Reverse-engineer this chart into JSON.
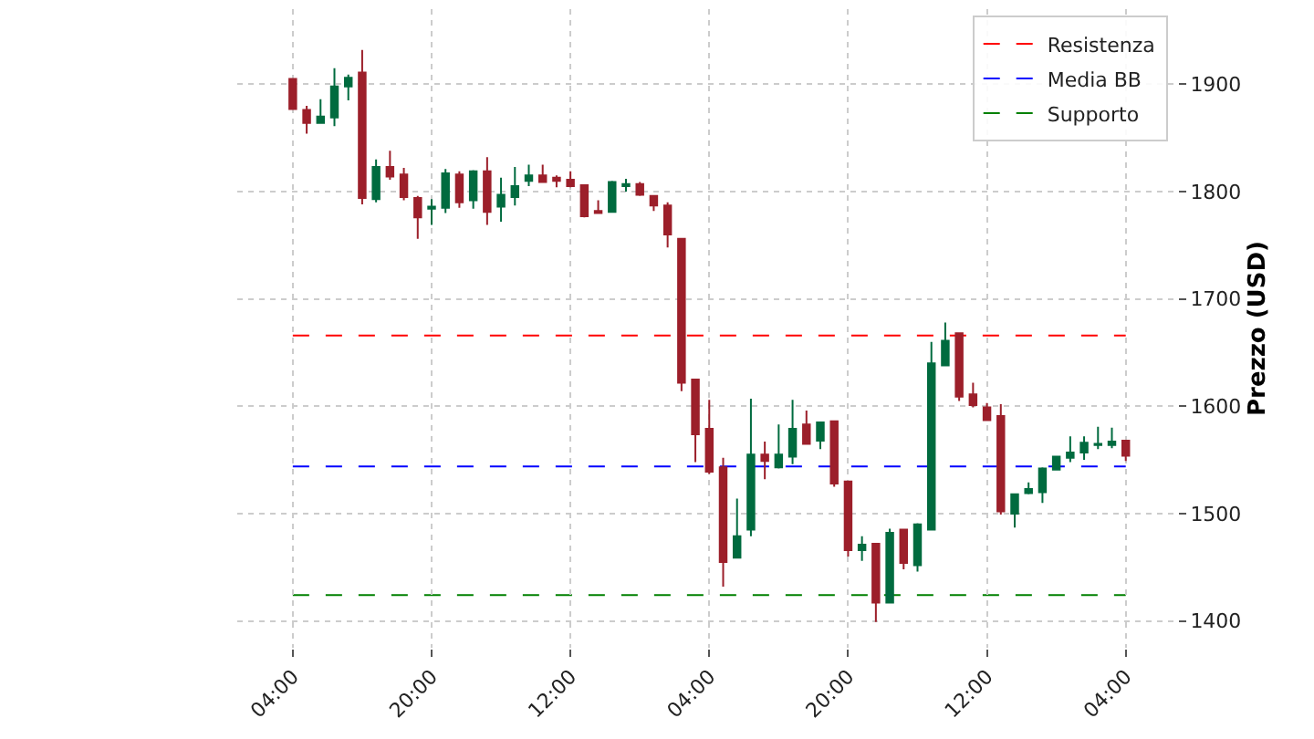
{
  "chart_data": {
    "type": "candlestick",
    "ylabel": "Prezzo (USD)",
    "categories": [
      "04:00",
      null,
      null,
      null,
      null,
      null,
      null,
      null,
      null,
      null,
      "20:00",
      null,
      null,
      null,
      null,
      null,
      null,
      null,
      null,
      null,
      "12:00",
      null,
      null,
      null,
      null,
      null,
      null,
      null,
      null,
      null,
      "04:00",
      null,
      null,
      null,
      null,
      null,
      null,
      null,
      null,
      null,
      "20:00",
      null,
      null,
      null,
      null,
      null,
      null,
      null,
      null,
      null,
      "12:00",
      null,
      null,
      null,
      null,
      null,
      null,
      null,
      null,
      null,
      "04:00"
    ],
    "ohlc": [
      [
        1905,
        1905,
        1876,
        1877
      ],
      [
        1876,
        1880,
        1854,
        1864
      ],
      [
        1864,
        1886,
        1864,
        1870
      ],
      [
        1869,
        1915,
        1861,
        1898
      ],
      [
        1898,
        1909,
        1885,
        1906
      ],
      [
        1911,
        1932,
        1788,
        1794
      ],
      [
        1793,
        1830,
        1790,
        1823
      ],
      [
        1823,
        1838,
        1811,
        1814
      ],
      [
        1816,
        1822,
        1792,
        1795
      ],
      [
        1794,
        1796,
        1756,
        1776
      ],
      [
        1784,
        1793,
        1769,
        1786
      ],
      [
        1785,
        1821,
        1780,
        1817
      ],
      [
        1816,
        1819,
        1785,
        1790
      ],
      [
        1792,
        1820,
        1784,
        1819
      ],
      [
        1819,
        1832,
        1769,
        1781
      ],
      [
        1786,
        1813,
        1772,
        1797
      ],
      [
        1795,
        1823,
        1787,
        1805
      ],
      [
        1810,
        1825,
        1805,
        1815
      ],
      [
        1815,
        1825,
        1809,
        1809
      ],
      [
        1813,
        1815,
        1804,
        1810
      ],
      [
        1811,
        1819,
        1804,
        1805
      ],
      [
        1806,
        1806,
        1776,
        1777
      ],
      [
        1782,
        1792,
        1780,
        1780
      ],
      [
        1781,
        1810,
        1781,
        1809
      ],
      [
        1805,
        1812,
        1800,
        1807
      ],
      [
        1807,
        1809,
        1796,
        1797
      ],
      [
        1796,
        1796,
        1782,
        1787
      ],
      [
        1787,
        1790,
        1748,
        1760
      ],
      [
        1756,
        1756,
        1614,
        1622
      ],
      [
        1625,
        1625,
        1548,
        1574
      ],
      [
        1579,
        1606,
        1537,
        1539
      ],
      [
        1543,
        1552,
        1432,
        1455
      ],
      [
        1459,
        1514,
        1459,
        1479
      ],
      [
        1485,
        1607,
        1479,
        1555
      ],
      [
        1555,
        1567,
        1532,
        1549
      ],
      [
        1543,
        1583,
        1542,
        1555
      ],
      [
        1553,
        1606,
        1546,
        1579
      ],
      [
        1583,
        1596,
        1565,
        1565
      ],
      [
        1568,
        1585,
        1560,
        1585
      ],
      [
        1586,
        1586,
        1525,
        1528
      ],
      [
        1530,
        1530,
        1460,
        1466
      ],
      [
        1466,
        1479,
        1456,
        1471
      ],
      [
        1472,
        1472,
        1399,
        1417
      ],
      [
        1417,
        1486,
        1417,
        1482
      ],
      [
        1485,
        1485,
        1448,
        1454
      ],
      [
        1452,
        1491,
        1446,
        1490
      ],
      [
        1485,
        1660,
        1485,
        1640
      ],
      [
        1638,
        1678,
        1638,
        1661
      ],
      [
        1668,
        1668,
        1605,
        1609
      ],
      [
        1611,
        1622,
        1599,
        1601
      ],
      [
        1599,
        1603,
        1587,
        1587
      ],
      [
        1591,
        1602,
        1499,
        1502
      ],
      [
        1500,
        1518,
        1487,
        1518
      ],
      [
        1519,
        1529,
        1518,
        1523
      ],
      [
        1520,
        1543,
        1510,
        1542
      ],
      [
        1541,
        1553,
        1541,
        1553
      ],
      [
        1552,
        1572,
        1548,
        1557
      ],
      [
        1557,
        1572,
        1550,
        1566
      ],
      [
        1564,
        1581,
        1560,
        1565
      ],
      [
        1564,
        1580,
        1561,
        1567
      ],
      [
        1568,
        1568,
        1549,
        1554
      ]
    ],
    "colors": [
      "#9c1f2a",
      "#9c1f2a",
      "#006b3f",
      "#006b3f",
      "#006b3f",
      "#9c1f2a",
      "#006b3f",
      "#9c1f2a",
      "#9c1f2a",
      "#9c1f2a",
      "#006b3f",
      "#006b3f",
      "#9c1f2a",
      "#006b3f",
      "#9c1f2a",
      "#006b3f",
      "#006b3f",
      "#006b3f",
      "#9c1f2a",
      "#9c1f2a",
      "#9c1f2a",
      "#9c1f2a",
      "#9c1f2a",
      "#006b3f",
      "#006b3f",
      "#9c1f2a",
      "#9c1f2a",
      "#9c1f2a",
      "#9c1f2a",
      "#9c1f2a",
      "#9c1f2a",
      "#9c1f2a",
      "#006b3f",
      "#006b3f",
      "#9c1f2a",
      "#006b3f",
      "#006b3f",
      "#9c1f2a",
      "#006b3f",
      "#9c1f2a",
      "#9c1f2a",
      "#006b3f",
      "#9c1f2a",
      "#006b3f",
      "#9c1f2a",
      "#006b3f",
      "#006b3f",
      "#006b3f",
      "#9c1f2a",
      "#9c1f2a",
      "#9c1f2a",
      "#9c1f2a",
      "#006b3f",
      "#006b3f",
      "#006b3f",
      "#006b3f",
      "#006b3f",
      "#006b3f",
      "#006b3f",
      "#006b3f",
      "#9c1f2a"
    ],
    "ylim": [
      1375,
      1970
    ],
    "yticks": [
      1400,
      1500,
      1600,
      1700,
      1800,
      1900
    ],
    "ref_lines": [
      {
        "axis": "y",
        "value": 1666,
        "label": "Resistenza",
        "color": "#ff0000",
        "line_style": "dashed"
      },
      {
        "axis": "y",
        "value": 1544,
        "label": "Media BB",
        "color": "#0000ff",
        "line_style": "dashed"
      },
      {
        "axis": "y",
        "value": 1424,
        "label": "Supporto",
        "color": "#008000",
        "line_style": "dashed"
      }
    ],
    "grid": true,
    "legend": "top right"
  }
}
